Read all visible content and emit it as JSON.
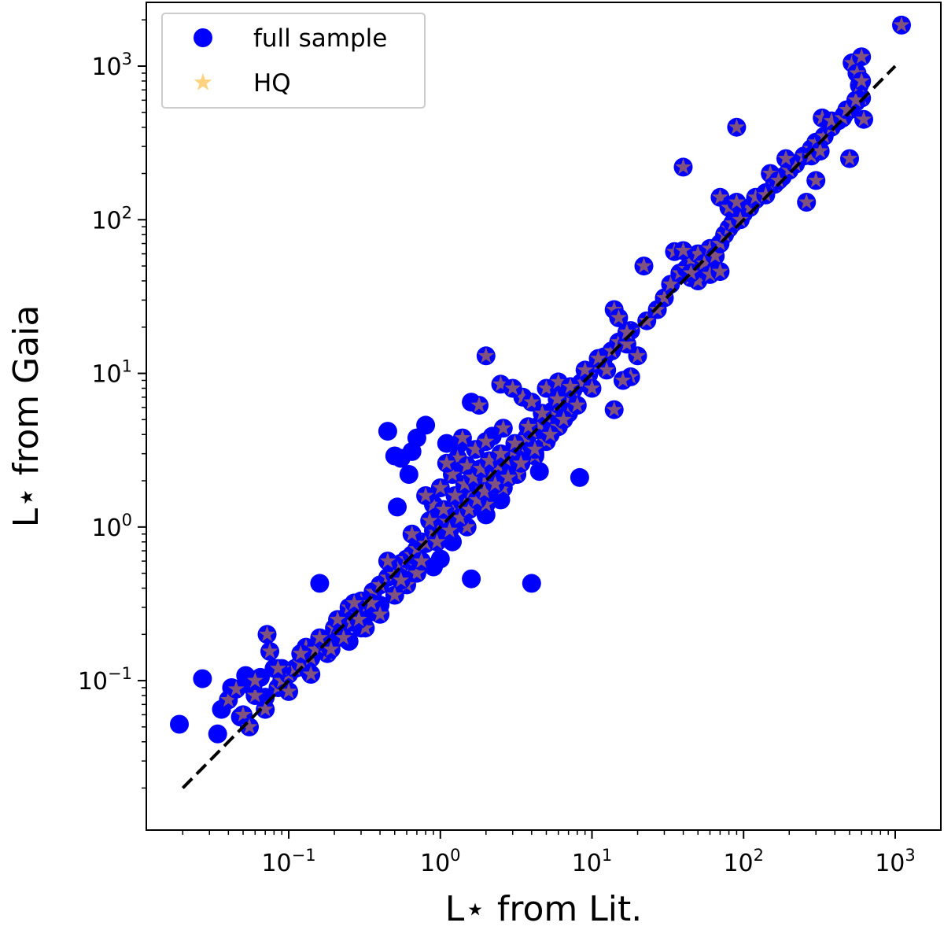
{
  "chart_data": {
    "type": "scatter",
    "xscale": "log",
    "yscale": "log",
    "xlabel": "L⋆ from Lit.",
    "ylabel": "L⋆ from Gaia",
    "xlim": [
      0.0115,
      2000
    ],
    "ylim": [
      0.01065,
      2600
    ],
    "xticks": [
      {
        "base": "10",
        "exp": "−1",
        "value": 0.1
      },
      {
        "base": "10",
        "exp": "0",
        "value": 1
      },
      {
        "base": "10",
        "exp": "1",
        "value": 10
      },
      {
        "base": "10",
        "exp": "2",
        "value": 100
      },
      {
        "base": "10",
        "exp": "3",
        "value": 1000
      }
    ],
    "yticks": [
      {
        "base": "10",
        "exp": "−1",
        "value": 0.1
      },
      {
        "base": "10",
        "exp": "0",
        "value": 1
      },
      {
        "base": "10",
        "exp": "1",
        "value": 10
      },
      {
        "base": "10",
        "exp": "2",
        "value": 100
      },
      {
        "base": "10",
        "exp": "3",
        "value": 1000
      }
    ],
    "reference_line": {
      "style": "dashed",
      "color": "#000000",
      "x": [
        0.02,
        1000
      ],
      "y": [
        0.02,
        1000
      ]
    },
    "legend": {
      "position": "top-left",
      "entries": [
        {
          "label": "full sample",
          "marker": "circle",
          "color": "#0000ff"
        },
        {
          "label": "HQ",
          "marker": "star",
          "color": "#ffa500"
        }
      ]
    },
    "series": [
      {
        "name": "full sample",
        "marker": "circle",
        "color": "#0000ff",
        "points": [
          [
            0.019,
            0.052
          ],
          [
            0.027,
            0.103
          ],
          [
            0.034,
            0.045
          ],
          [
            0.036,
            0.065
          ],
          [
            0.042,
            0.09
          ],
          [
            0.048,
            0.058
          ],
          [
            0.052,
            0.108
          ],
          [
            0.058,
            0.09
          ],
          [
            0.065,
            0.105
          ],
          [
            0.07,
            0.078
          ],
          [
            0.08,
            0.12
          ],
          [
            0.16,
            0.43
          ],
          [
            0.35,
            0.28
          ],
          [
            0.4,
            0.31
          ],
          [
            0.45,
            4.2
          ],
          [
            0.5,
            2.9
          ],
          [
            0.52,
            1.35
          ],
          [
            0.55,
            2.8
          ],
          [
            0.62,
            2.2
          ],
          [
            0.65,
            3.1
          ],
          [
            0.7,
            3.8
          ],
          [
            0.8,
            4.6
          ],
          [
            1.1,
            3.5
          ],
          [
            1.3,
            3.4
          ],
          [
            1.6,
            0.46
          ],
          [
            1.6,
            6.5
          ],
          [
            2.2,
            3.9
          ],
          [
            3.0,
            2.4
          ],
          [
            4.0,
            0.43
          ],
          [
            4.2,
            3.0
          ],
          [
            4.5,
            2.3
          ],
          [
            8.3,
            2.1
          ],
          [
            0.25,
            0.18
          ],
          [
            0.3,
            0.22
          ],
          [
            0.9,
            0.55
          ],
          [
            1.0,
            0.62
          ],
          [
            2.0,
            1.2
          ],
          [
            2.5,
            1.5
          ],
          [
            0.22,
            0.25
          ],
          [
            0.13,
            0.12
          ],
          [
            0.6,
            0.45
          ],
          [
            1.2,
            0.8
          ],
          [
            3.5,
            2.8
          ]
        ]
      },
      {
        "name": "HQ",
        "marker": "star",
        "color": "#ffa500",
        "points": [
          [
            0.04,
            0.075
          ],
          [
            0.045,
            0.088
          ],
          [
            0.05,
            0.06
          ],
          [
            0.055,
            0.05
          ],
          [
            0.06,
            0.08
          ],
          [
            0.072,
            0.2
          ],
          [
            0.075,
            0.155
          ],
          [
            0.085,
            0.09
          ],
          [
            0.09,
            0.1
          ],
          [
            0.1,
            0.11
          ],
          [
            0.11,
            0.12
          ],
          [
            0.12,
            0.13
          ],
          [
            0.13,
            0.165
          ],
          [
            0.14,
            0.14
          ],
          [
            0.15,
            0.16
          ],
          [
            0.17,
            0.18
          ],
          [
            0.18,
            0.15
          ],
          [
            0.2,
            0.22
          ],
          [
            0.22,
            0.2
          ],
          [
            0.24,
            0.26
          ],
          [
            0.26,
            0.24
          ],
          [
            0.28,
            0.3
          ],
          [
            0.3,
            0.33
          ],
          [
            0.33,
            0.31
          ],
          [
            0.36,
            0.38
          ],
          [
            0.4,
            0.42
          ],
          [
            0.45,
            0.47
          ],
          [
            0.5,
            0.49
          ],
          [
            0.55,
            0.58
          ],
          [
            0.6,
            0.62
          ],
          [
            0.65,
            0.66
          ],
          [
            0.7,
            0.72
          ],
          [
            0.75,
            0.8
          ],
          [
            0.8,
            0.78
          ],
          [
            0.9,
            0.95
          ],
          [
            1.0,
            1.02
          ],
          [
            1.1,
            1.1
          ],
          [
            1.2,
            1.25
          ],
          [
            1.3,
            1.35
          ],
          [
            1.4,
            1.45
          ],
          [
            1.5,
            1.55
          ],
          [
            1.6,
            1.7
          ],
          [
            1.8,
            1.85
          ],
          [
            2.0,
            2.05
          ],
          [
            2.2,
            2.3
          ],
          [
            2.4,
            2.5
          ],
          [
            2.7,
            2.75
          ],
          [
            3.0,
            3.1
          ],
          [
            3.3,
            3.4
          ],
          [
            3.7,
            3.8
          ],
          [
            4.0,
            4.2
          ],
          [
            4.5,
            4.6
          ],
          [
            5.0,
            5.2
          ],
          [
            5.5,
            5.7
          ],
          [
            6.0,
            6.3
          ],
          [
            6.7,
            6.9
          ],
          [
            7.5,
            7.8
          ],
          [
            8.5,
            8.7
          ],
          [
            9.5,
            9.8
          ],
          [
            11.0,
            11.5
          ],
          [
            12.0,
            12.8
          ],
          [
            13.5,
            14.0
          ],
          [
            15.0,
            16.0
          ],
          [
            17.0,
            15.5
          ],
          [
            18.0,
            19.0
          ],
          [
            0.9,
            1.4
          ],
          [
            1.0,
            1.8
          ],
          [
            1.2,
            2.2
          ],
          [
            1.3,
            2.8
          ],
          [
            1.5,
            2.5
          ],
          [
            1.7,
            3.2
          ],
          [
            2.0,
            3.6
          ],
          [
            0.8,
            1.6
          ],
          [
            1.1,
            2.6
          ],
          [
            1.4,
            3.8
          ],
          [
            2.6,
            4.4
          ],
          [
            0.7,
            0.5
          ],
          [
            0.6,
            0.42
          ],
          [
            0.5,
            0.36
          ],
          [
            0.4,
            0.27
          ],
          [
            0.32,
            0.22
          ],
          [
            1.5,
            1.0
          ],
          [
            2.0,
            1.4
          ],
          [
            2.6,
            1.8
          ],
          [
            3.2,
            2.2
          ],
          [
            4.2,
            2.9
          ],
          [
            5.0,
            3.6
          ],
          [
            6.0,
            4.5
          ],
          [
            7.0,
            5.5
          ],
          [
            3.5,
            7.0
          ],
          [
            4.0,
            6.5
          ],
          [
            5.0,
            8.0
          ],
          [
            6.0,
            8.8
          ],
          [
            2.0,
            13.0
          ],
          [
            2.5,
            8.5
          ],
          [
            3.0,
            8.0
          ],
          [
            1.8,
            6.2
          ],
          [
            14.0,
            26.0
          ],
          [
            15.0,
            23.0
          ],
          [
            17.0,
            18.5
          ],
          [
            20.0,
            13.0
          ],
          [
            18.0,
            9.5
          ],
          [
            16.0,
            9.0
          ],
          [
            14.0,
            5.8
          ],
          [
            22.0,
            50.0
          ],
          [
            23.0,
            22.0
          ],
          [
            27.0,
            26.0
          ],
          [
            30.0,
            31.0
          ],
          [
            33.0,
            38.0
          ],
          [
            38.0,
            45.0
          ],
          [
            42.0,
            48.0
          ],
          [
            45.0,
            55.0
          ],
          [
            50.0,
            60.0
          ],
          [
            55.0,
            52.0
          ],
          [
            60.0,
            65.0
          ],
          [
            65.0,
            58.0
          ],
          [
            70.0,
            70.0
          ],
          [
            75.0,
            80.0
          ],
          [
            80.0,
            88.0
          ],
          [
            85.0,
            95.0
          ],
          [
            90.0,
            100.0
          ],
          [
            100.0,
            110.0
          ],
          [
            110.0,
            120.0
          ],
          [
            120.0,
            135.0
          ],
          [
            140.0,
            150.0
          ],
          [
            160.0,
            170.0
          ],
          [
            180.0,
            190.0
          ],
          [
            200.0,
            210.0
          ],
          [
            220.0,
            230.0
          ],
          [
            250.0,
            260.0
          ],
          [
            280.0,
            290.0
          ],
          [
            300.0,
            320.0
          ],
          [
            340.0,
            350.0
          ],
          [
            380.0,
            400.0
          ],
          [
            420.0,
            440.0
          ],
          [
            460.0,
            480.0
          ],
          [
            500.0,
            520.0
          ],
          [
            550.0,
            580.0
          ],
          [
            600.0,
            620.0
          ],
          [
            35.0,
            62.0
          ],
          [
            40.0,
            63.0
          ],
          [
            45.0,
            42.0
          ],
          [
            50.0,
            40.0
          ],
          [
            60.0,
            44.0
          ],
          [
            70.0,
            46.0
          ],
          [
            45.0,
            45.0
          ],
          [
            70.0,
            140.0
          ],
          [
            80.0,
            120.0
          ],
          [
            85.0,
            95.0
          ],
          [
            90.0,
            130.0
          ],
          [
            95.0,
            100.0
          ],
          [
            40.0,
            220.0
          ],
          [
            90.0,
            400.0
          ],
          [
            120.0,
            140.0
          ],
          [
            140.0,
            145.0
          ],
          [
            150.0,
            200.0
          ],
          [
            170.0,
            180.0
          ],
          [
            190.0,
            250.0
          ],
          [
            260.0,
            130.0
          ],
          [
            280.0,
            260.0
          ],
          [
            300.0,
            180.0
          ],
          [
            320.0,
            280.0
          ],
          [
            330.0,
            460.0
          ],
          [
            380.0,
            440.0
          ],
          [
            450.0,
            460.0
          ],
          [
            480.0,
            520.0
          ],
          [
            500.0,
            250.0
          ],
          [
            520.0,
            1050.0
          ],
          [
            550.0,
            600.0
          ],
          [
            560.0,
            900.0
          ],
          [
            580.0,
            750.0
          ],
          [
            600.0,
            1150.0
          ],
          [
            620.0,
            450.0
          ],
          [
            600.0,
            800.0
          ],
          [
            1100.0,
            1850.0
          ],
          [
            0.09,
            0.12
          ],
          [
            0.25,
            0.3
          ],
          [
            0.35,
            0.32
          ],
          [
            0.45,
            0.6
          ],
          [
            0.55,
            0.45
          ],
          [
            0.65,
            0.9
          ],
          [
            0.75,
            0.6
          ],
          [
            0.85,
            1.1
          ],
          [
            0.95,
            0.8
          ],
          [
            1.05,
            1.3
          ],
          [
            1.15,
            0.95
          ],
          [
            1.25,
            1.6
          ],
          [
            1.35,
            1.15
          ],
          [
            1.45,
            1.9
          ],
          [
            1.55,
            1.3
          ],
          [
            1.65,
            2.1
          ],
          [
            1.75,
            1.5
          ],
          [
            1.85,
            2.4
          ],
          [
            1.95,
            1.7
          ],
          [
            2.1,
            2.7
          ],
          [
            2.3,
            1.9
          ],
          [
            2.5,
            3.0
          ],
          [
            2.8,
            2.1
          ],
          [
            3.1,
            3.5
          ],
          [
            3.4,
            2.6
          ],
          [
            3.8,
            4.5
          ],
          [
            4.2,
            3.2
          ],
          [
            4.7,
            5.5
          ],
          [
            5.3,
            4.0
          ],
          [
            5.9,
            6.8
          ],
          [
            6.5,
            5.0
          ],
          [
            7.2,
            8.2
          ],
          [
            8.0,
            6.2
          ],
          [
            9.0,
            10.5
          ],
          [
            10.0,
            8.0
          ],
          [
            11.0,
            12.5
          ],
          [
            12.5,
            10.5
          ],
          [
            0.06,
            0.1
          ],
          [
            0.07,
            0.065
          ],
          [
            0.085,
            0.12
          ],
          [
            0.1,
            0.085
          ],
          [
            0.12,
            0.15
          ],
          [
            0.14,
            0.11
          ],
          [
            0.16,
            0.19
          ],
          [
            0.19,
            0.16
          ],
          [
            0.21,
            0.25
          ],
          [
            0.23,
            0.19
          ],
          [
            0.27,
            0.32
          ],
          [
            0.29,
            0.25
          ]
        ]
      }
    ]
  }
}
